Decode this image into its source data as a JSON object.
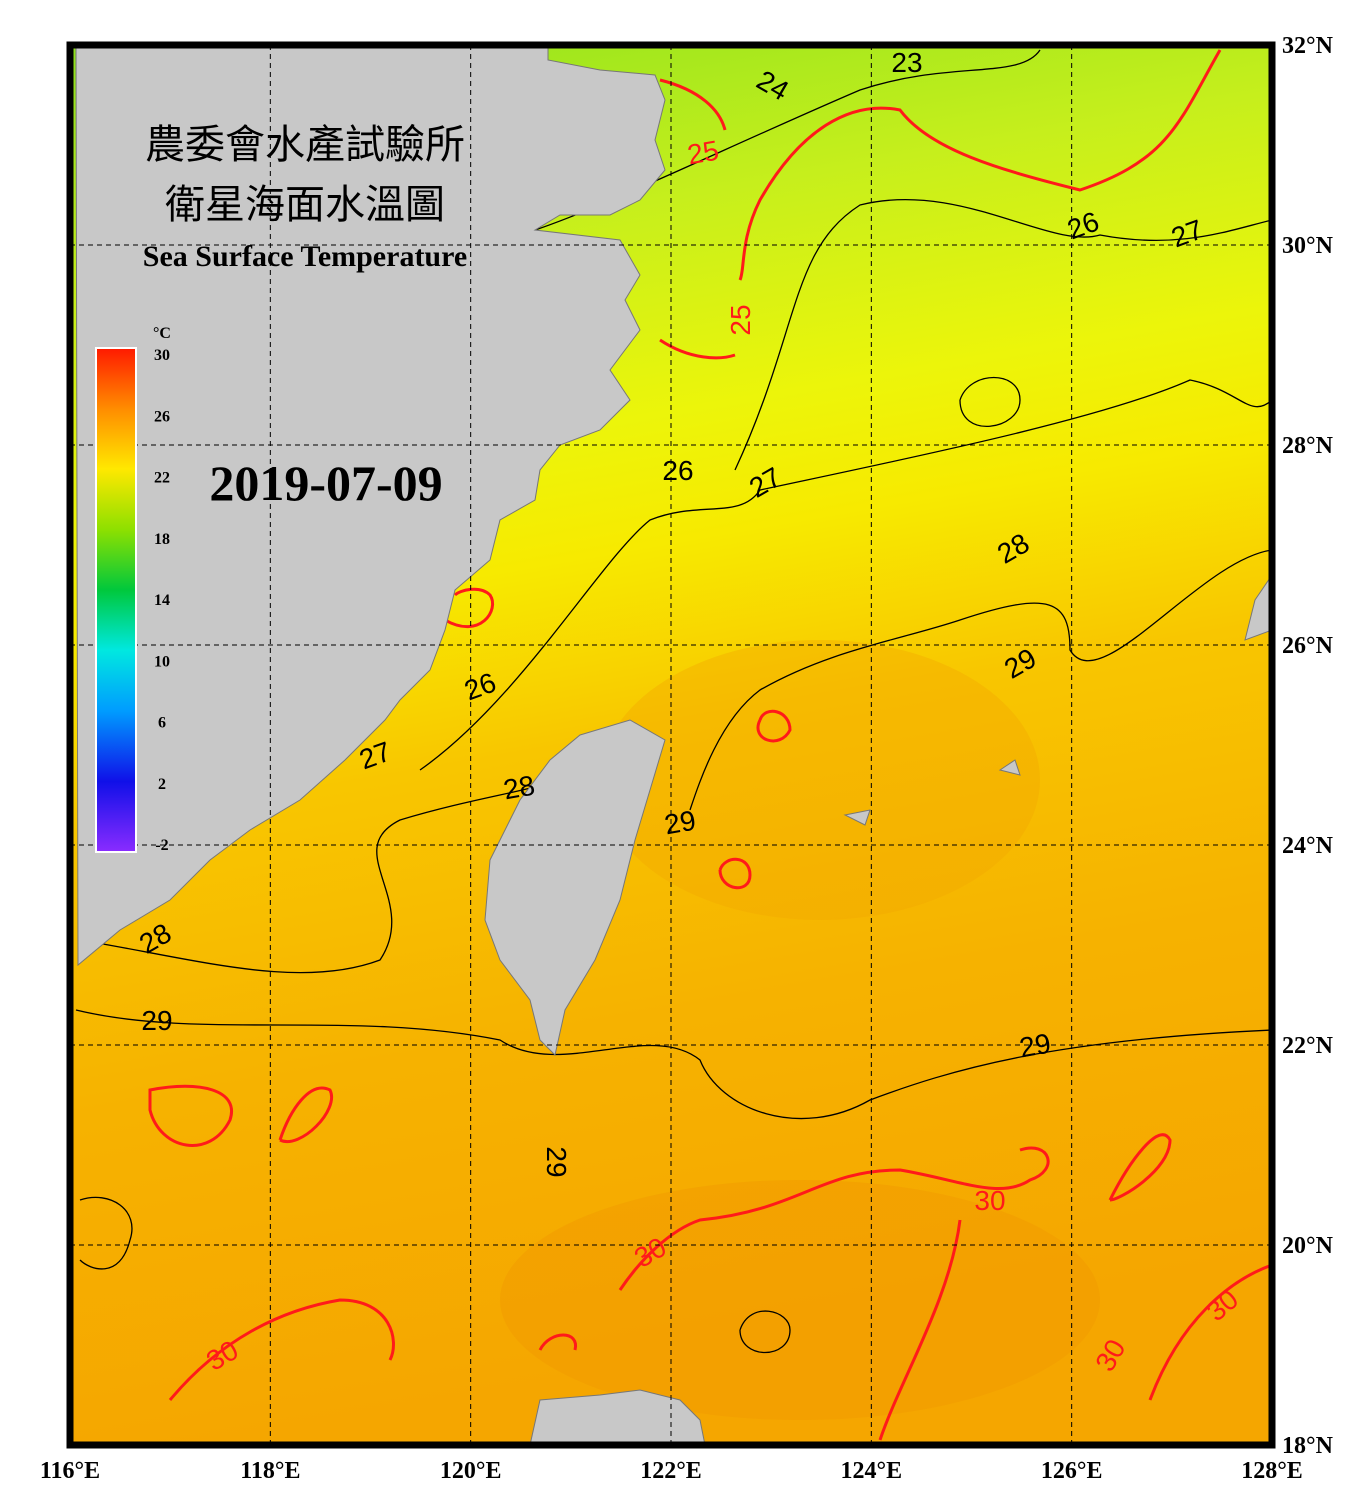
{
  "header": {
    "title_zh": "農委會水產試驗所",
    "subtitle_zh": "衛星海面水溫圖",
    "title_en": "Sea Surface Temperature",
    "date": "2019-07-09"
  },
  "colorbar": {
    "unit": "°C",
    "ticks": [
      30,
      26,
      22,
      18,
      14,
      10,
      6,
      2,
      -2
    ]
  },
  "map": {
    "lon_ticks": [
      {
        "value": 116,
        "label": "116°E"
      },
      {
        "value": 118,
        "label": "118°E"
      },
      {
        "value": 120,
        "label": "120°E"
      },
      {
        "value": 122,
        "label": "122°E"
      },
      {
        "value": 124,
        "label": "124°E"
      },
      {
        "value": 126,
        "label": "126°E"
      },
      {
        "value": 128,
        "label": "128°E"
      }
    ],
    "lat_ticks": [
      {
        "value": 18,
        "label": "18°N"
      },
      {
        "value": 20,
        "label": "20°N"
      },
      {
        "value": 22,
        "label": "22°N"
      },
      {
        "value": 24,
        "label": "24°N"
      },
      {
        "value": 26,
        "label": "26°N"
      },
      {
        "value": 28,
        "label": "28°N"
      },
      {
        "value": 30,
        "label": "30°N"
      },
      {
        "value": 32,
        "label": "32°N"
      }
    ],
    "contour_labels": [
      23,
      24,
      25,
      26,
      27,
      25,
      26,
      27,
      28,
      29,
      26,
      27,
      28,
      29,
      28,
      29,
      29,
      29,
      30,
      30,
      30,
      30,
      30
    ]
  }
}
